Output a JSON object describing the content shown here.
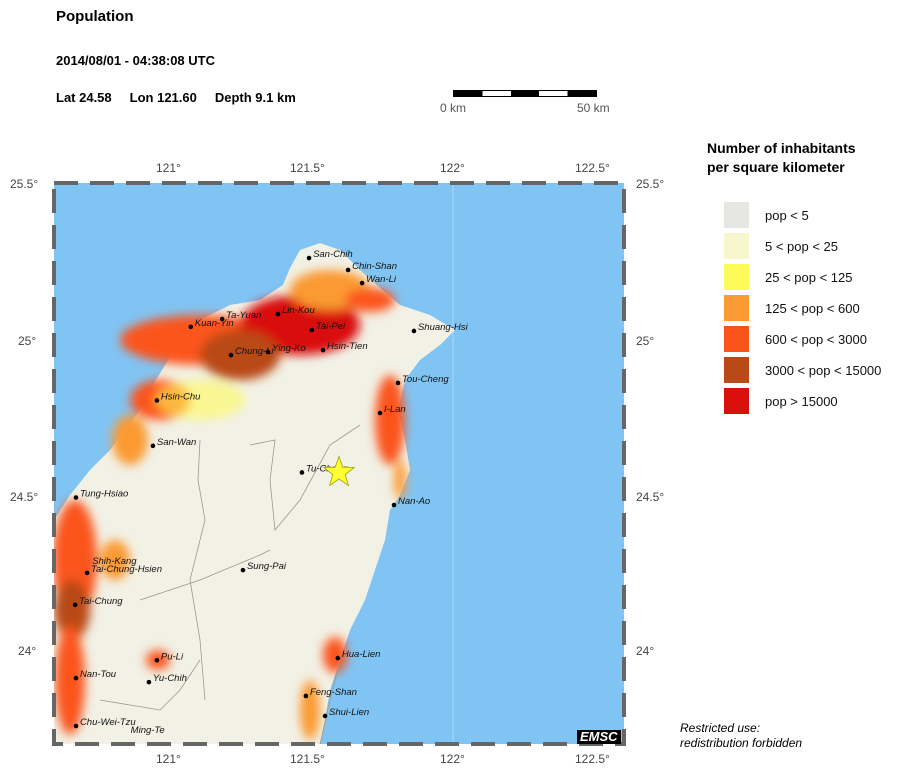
{
  "header": {
    "title": "Population",
    "datetime": "2014/08/01 - 04:38:08 UTC",
    "lat_label": "Lat 24.58",
    "lon_label": "Lon 121.60",
    "depth_label": "Depth  9.1 km"
  },
  "scale_bar": {
    "start": "0 km",
    "end": "50 km"
  },
  "axes": {
    "lon_ticks": [
      "121°",
      "121.5°",
      "122°",
      "122.5°"
    ],
    "lat_ticks": [
      "25.5°",
      "25°",
      "24.5°",
      "24°"
    ],
    "lon_range": [
      120.6,
      122.6
    ],
    "lat_range": [
      23.7,
      25.5
    ]
  },
  "epicenter": {
    "lat": 24.58,
    "lon": 121.6,
    "color": "#ffff33"
  },
  "cities": [
    {
      "name": "San-Chih",
      "lon": 121.495,
      "lat": 25.265
    },
    {
      "name": "Chin-Shan",
      "lon": 121.632,
      "lat": 25.227
    },
    {
      "name": "Wan-Li",
      "lon": 121.681,
      "lat": 25.185
    },
    {
      "name": "Ta-Yuan",
      "lon": 121.19,
      "lat": 25.07
    },
    {
      "name": "Kuan-Yin",
      "lon": 121.08,
      "lat": 25.045
    },
    {
      "name": "Lin-Kou",
      "lon": 121.386,
      "lat": 25.086
    },
    {
      "name": "Tai-Pei",
      "lon": 121.505,
      "lat": 25.035
    },
    {
      "name": "Shuang-Hsi",
      "lon": 121.863,
      "lat": 25.032
    },
    {
      "name": "Chung-Li",
      "lon": 121.221,
      "lat": 24.955
    },
    {
      "name": "Ying-Ko",
      "lon": 121.351,
      "lat": 24.965
    },
    {
      "name": "Hsin-Tien",
      "lon": 121.544,
      "lat": 24.971
    },
    {
      "name": "Tou-Cheng",
      "lon": 121.807,
      "lat": 24.866
    },
    {
      "name": "Hsin-Chu",
      "lon": 120.961,
      "lat": 24.81
    },
    {
      "name": "I-Lan",
      "lon": 121.744,
      "lat": 24.77
    },
    {
      "name": "San-Wan",
      "lon": 120.947,
      "lat": 24.665
    },
    {
      "name": "Tu-Chang",
      "lon": 121.47,
      "lat": 24.58
    },
    {
      "name": "Nan-Ao",
      "lon": 121.793,
      "lat": 24.476
    },
    {
      "name": "Tung-Hsiao",
      "lon": 120.677,
      "lat": 24.5
    },
    {
      "name": "Shih-Kang",
      "lon": 120.72,
      "lat": 24.285,
      "nodot": true
    },
    {
      "name": "Tai-Chung-Hsien",
      "lon": 120.716,
      "lat": 24.259
    },
    {
      "name": "Sung-Pai",
      "lon": 121.263,
      "lat": 24.268
    },
    {
      "name": "Tai-Chung",
      "lon": 120.674,
      "lat": 24.157
    },
    {
      "name": "Pu-Li",
      "lon": 120.961,
      "lat": 23.98
    },
    {
      "name": "Nan-Tou",
      "lon": 120.677,
      "lat": 23.923
    },
    {
      "name": "Yu-Chih",
      "lon": 120.933,
      "lat": 23.91
    },
    {
      "name": "Hua-Lien",
      "lon": 121.596,
      "lat": 23.987
    },
    {
      "name": "Feng-Shan",
      "lon": 121.484,
      "lat": 23.866
    },
    {
      "name": "Shui-Lien",
      "lon": 121.551,
      "lat": 23.802
    },
    {
      "name": "Chu-Wei-Tzu",
      "lon": 120.677,
      "lat": 23.77
    },
    {
      "name": "Ming-Te",
      "lon": 120.855,
      "lat": 23.745,
      "nodot": true
    }
  ],
  "legend": {
    "title_line1": "Number of inhabitants",
    "title_line2": "per square kilometer",
    "items": [
      {
        "label": "pop < 5",
        "color": "#e6e6e3"
      },
      {
        "label": "5 < pop < 25",
        "color": "#f8f6cc"
      },
      {
        "label": "25 < pop < 125",
        "color": "#fdfb5a"
      },
      {
        "label": "125 < pop < 600",
        "color": "#fb9a32"
      },
      {
        "label": "600 < pop < 3000",
        "color": "#fb541b"
      },
      {
        "label": "3000 < pop < 15000",
        "color": "#b94a17"
      },
      {
        "label": "pop > 15000",
        "color": "#d90f0c"
      }
    ]
  },
  "logo": "EMSC",
  "note": {
    "line1": "Restricted use:",
    "line2": "redistribution forbidden"
  },
  "colors": {
    "sea": "#80c4f4",
    "land": "#f2f1e6"
  }
}
